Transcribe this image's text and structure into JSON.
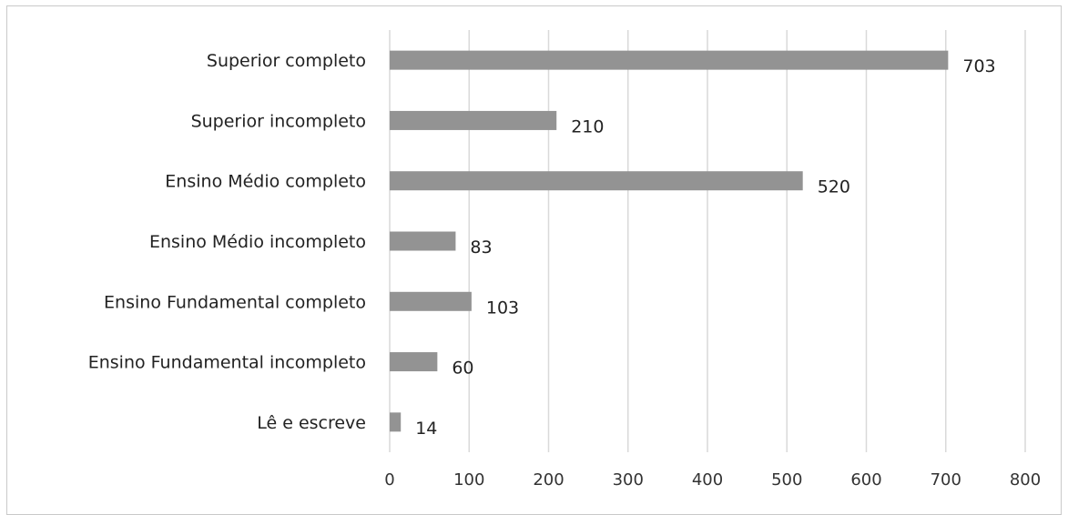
{
  "chart_data": {
    "type": "bar",
    "orientation": "horizontal",
    "categories": [
      "Superior completo",
      "Superior incompleto",
      "Ensino Médio completo",
      "Ensino Médio incompleto",
      "Ensino Fundamental completo",
      "Ensino Fundamental incompleto",
      "Lê e escreve"
    ],
    "values": [
      703,
      210,
      520,
      83,
      103,
      60,
      14
    ],
    "value_labels": [
      "703",
      "210",
      "520",
      "83",
      "103",
      "60",
      "14"
    ],
    "xticks": [
      "0",
      "100",
      "200",
      "300",
      "400",
      "500",
      "600",
      "700",
      "800"
    ],
    "xlim": [
      0,
      800
    ],
    "grid": true,
    "title": "",
    "xlabel": "",
    "ylabel": "",
    "bar_color": "#939393",
    "grid_color": "#d9d9d9"
  }
}
